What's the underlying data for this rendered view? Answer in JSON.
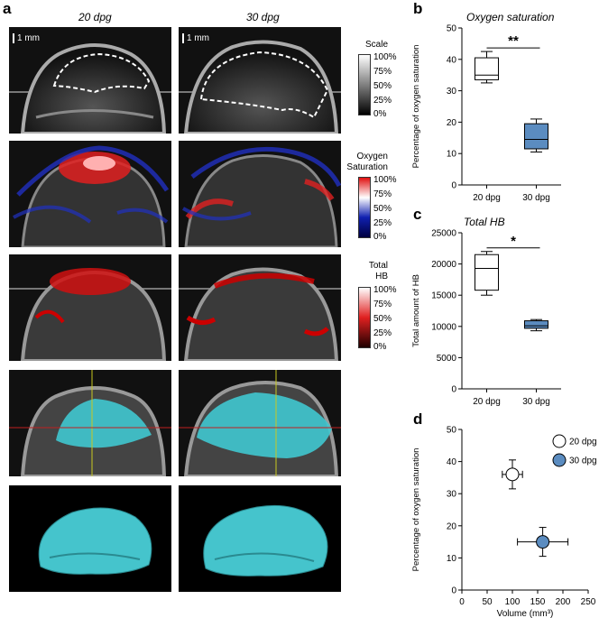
{
  "figure": {
    "panel_a_label": "a",
    "columns": [
      "20 dpg",
      "30 dpg"
    ],
    "scale_bar": "1 mm",
    "colorbars": [
      {
        "title_lines": [
          "Scale"
        ],
        "ticks": [
          "100%",
          "75%",
          "50%",
          "25%",
          "0%"
        ]
      },
      {
        "title_lines": [
          "Oxygen",
          "Saturation"
        ],
        "ticks": [
          "100%",
          "75%",
          "50%",
          "25%",
          "0%"
        ]
      },
      {
        "title_lines": [
          "Total",
          "HB"
        ],
        "ticks": [
          "100%",
          "75%",
          "50%",
          "25%",
          "0%"
        ]
      }
    ],
    "colors": {
      "box_white": "#ffffff",
      "box_blue": "#5b8cc0",
      "scan_cyan": "#40c8d0",
      "oxy_red": "#e02020",
      "oxy_blue": "#2030c0"
    }
  },
  "chart_data": [
    {
      "panel": "b",
      "type": "box",
      "title": "Oxygen saturation",
      "ylabel": "Percentage of oxygen saturation",
      "categories": [
        "20 dpg",
        "30 dpg"
      ],
      "ylim": [
        0,
        50
      ],
      "yticks": [
        0,
        10,
        20,
        30,
        40,
        50
      ],
      "boxes": [
        {
          "min": 32.5,
          "q1": 33.5,
          "median": 35.0,
          "q3": 40.5,
          "max": 42.5,
          "fill": "white"
        },
        {
          "min": 10.5,
          "q1": 11.5,
          "median": 14.5,
          "q3": 19.5,
          "max": 21.0,
          "fill": "blue"
        }
      ],
      "significance": "**"
    },
    {
      "panel": "c",
      "type": "box",
      "title": "Total HB",
      "ylabel": "Total amount of HB",
      "categories": [
        "20 dpg",
        "30 dpg"
      ],
      "ylim": [
        0,
        25000
      ],
      "yticks": [
        0,
        5000,
        10000,
        15000,
        20000,
        25000
      ],
      "boxes": [
        {
          "min": 15000,
          "q1": 15800,
          "median": 19300,
          "q3": 21500,
          "max": 22000,
          "fill": "white"
        },
        {
          "min": 9300,
          "q1": 9700,
          "median": 10100,
          "q3": 10900,
          "max": 11100,
          "fill": "blue"
        }
      ],
      "significance": "*"
    },
    {
      "panel": "d",
      "type": "scatter",
      "xlabel": "Volume (mm³)",
      "ylabel": "Percentage of oxygen saturation",
      "xlim": [
        0,
        250
      ],
      "ylim": [
        0,
        50
      ],
      "xticks": [
        0,
        50,
        100,
        150,
        200,
        250
      ],
      "yticks": [
        0,
        10,
        20,
        30,
        40,
        50
      ],
      "legend_position": "top-right",
      "points": [
        {
          "name": "20 dpg",
          "x": 100,
          "y": 36,
          "xerr": 20,
          "yerr": 4.5,
          "fill": "white"
        },
        {
          "name": "30 dpg",
          "x": 160,
          "y": 15,
          "xerr": 50,
          "yerr": 4.5,
          "fill": "blue"
        }
      ]
    }
  ]
}
